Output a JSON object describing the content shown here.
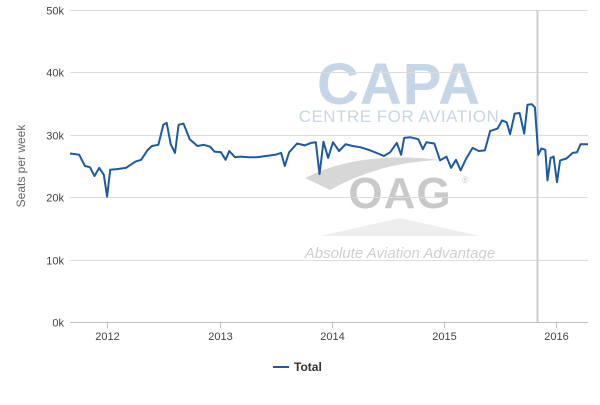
{
  "chart_data": {
    "type": "line",
    "title": "",
    "xlabel": "",
    "ylabel": "Seats per week",
    "ylim": [
      0,
      50000
    ],
    "y_ticks": [
      0,
      10000,
      20000,
      30000,
      40000,
      50000
    ],
    "y_tick_labels": [
      "0k",
      "10k",
      "20k",
      "30k",
      "40k",
      "50k"
    ],
    "xlim": [
      "2011-09-01",
      "2016-04-15"
    ],
    "x_ticks": [
      "2012-01-01",
      "2013-01-01",
      "2014-01-01",
      "2015-01-01",
      "2016-01-01"
    ],
    "x_tick_labels": [
      "2012",
      "2013",
      "2014",
      "2015",
      "2016"
    ],
    "grid": "horizontal",
    "legend_position": "bottom-center",
    "plot_line_date": "2015-11-01",
    "series": [
      {
        "name": "Total",
        "color": "#1d5a9e",
        "points": [
          [
            "2011-09-01",
            27000
          ],
          [
            "2011-10-01",
            26800
          ],
          [
            "2011-10-20",
            25000
          ],
          [
            "2011-11-05",
            24800
          ],
          [
            "2011-11-20",
            23400
          ],
          [
            "2011-12-05",
            24700
          ],
          [
            "2011-12-20",
            23600
          ],
          [
            "2011-12-31",
            20100
          ],
          [
            "2012-01-10",
            24400
          ],
          [
            "2012-02-01",
            24500
          ],
          [
            "2012-03-01",
            24700
          ],
          [
            "2012-04-01",
            25700
          ],
          [
            "2012-04-20",
            26000
          ],
          [
            "2012-05-10",
            27500
          ],
          [
            "2012-05-25",
            28200
          ],
          [
            "2012-06-15",
            28400
          ],
          [
            "2012-07-01",
            31600
          ],
          [
            "2012-07-12",
            31900
          ],
          [
            "2012-07-25",
            28500
          ],
          [
            "2012-08-08",
            27100
          ],
          [
            "2012-08-20",
            31600
          ],
          [
            "2012-09-05",
            31800
          ],
          [
            "2012-09-25",
            29300
          ],
          [
            "2012-10-20",
            28200
          ],
          [
            "2012-11-10",
            28400
          ],
          [
            "2012-12-01",
            28100
          ],
          [
            "2012-12-15",
            27300
          ],
          [
            "2013-01-05",
            27200
          ],
          [
            "2013-01-20",
            26000
          ],
          [
            "2013-02-01",
            27400
          ],
          [
            "2013-02-20",
            26400
          ],
          [
            "2013-03-10",
            26500
          ],
          [
            "2013-04-05",
            26400
          ],
          [
            "2013-05-01",
            26400
          ],
          [
            "2013-06-01",
            26600
          ],
          [
            "2013-07-01",
            26800
          ],
          [
            "2013-07-20",
            27100
          ],
          [
            "2013-08-01",
            25000
          ],
          [
            "2013-08-15",
            27200
          ],
          [
            "2013-09-10",
            28600
          ],
          [
            "2013-10-05",
            28300
          ],
          [
            "2013-10-25",
            28700
          ],
          [
            "2013-11-10",
            28800
          ],
          [
            "2013-11-22",
            23700
          ],
          [
            "2013-12-05",
            28900
          ],
          [
            "2013-12-20",
            26300
          ],
          [
            "2014-01-05",
            28800
          ],
          [
            "2014-01-25",
            27400
          ],
          [
            "2014-02-15",
            28500
          ],
          [
            "2014-03-10",
            28200
          ],
          [
            "2014-04-05",
            28000
          ],
          [
            "2014-05-01",
            27600
          ],
          [
            "2014-06-01",
            27000
          ],
          [
            "2014-06-20",
            26600
          ],
          [
            "2014-07-10",
            27200
          ],
          [
            "2014-08-01",
            28700
          ],
          [
            "2014-08-15",
            26800
          ],
          [
            "2014-08-25",
            29500
          ],
          [
            "2014-09-15",
            29600
          ],
          [
            "2014-10-10",
            29300
          ],
          [
            "2014-10-25",
            27700
          ],
          [
            "2014-11-05",
            28800
          ],
          [
            "2014-12-01",
            28600
          ],
          [
            "2014-12-20",
            25900
          ],
          [
            "2015-01-10",
            26500
          ],
          [
            "2015-01-25",
            24700
          ],
          [
            "2015-02-10",
            26000
          ],
          [
            "2015-02-25",
            24300
          ],
          [
            "2015-03-15",
            26200
          ],
          [
            "2015-04-05",
            27900
          ],
          [
            "2015-04-25",
            27400
          ],
          [
            "2015-05-15",
            27500
          ],
          [
            "2015-06-01",
            30600
          ],
          [
            "2015-06-25",
            31000
          ],
          [
            "2015-07-10",
            32300
          ],
          [
            "2015-07-25",
            32000
          ],
          [
            "2015-08-05",
            30100
          ],
          [
            "2015-08-20",
            33400
          ],
          [
            "2015-09-05",
            33500
          ],
          [
            "2015-09-20",
            30200
          ],
          [
            "2015-10-01",
            34800
          ],
          [
            "2015-10-15",
            34900
          ],
          [
            "2015-10-25",
            34400
          ],
          [
            "2015-11-05",
            26800
          ],
          [
            "2015-11-15",
            27800
          ],
          [
            "2015-11-28",
            27600
          ],
          [
            "2015-12-05",
            22700
          ],
          [
            "2015-12-15",
            26300
          ],
          [
            "2015-12-25",
            26500
          ],
          [
            "2016-01-05",
            22400
          ],
          [
            "2016-01-15",
            25900
          ],
          [
            "2016-02-05",
            26200
          ],
          [
            "2016-02-25",
            27100
          ],
          [
            "2016-03-10",
            27200
          ],
          [
            "2016-03-22",
            28500
          ],
          [
            "2016-04-15",
            28500
          ]
        ]
      }
    ]
  },
  "watermark": {
    "capa_title": "CAPA",
    "capa_subtitle": "CENTRE FOR AVIATION",
    "oag_title": "OAG",
    "oag_mark": "®",
    "oag_tagline": "Absolute Aviation Advantage"
  },
  "colors": {
    "line": "#1d5a9e",
    "grid": "#dcdcdc",
    "plot_line": "#cccccc",
    "capa_watermark": "#c5d6e6",
    "oag_watermark": "#c9c9c9"
  }
}
